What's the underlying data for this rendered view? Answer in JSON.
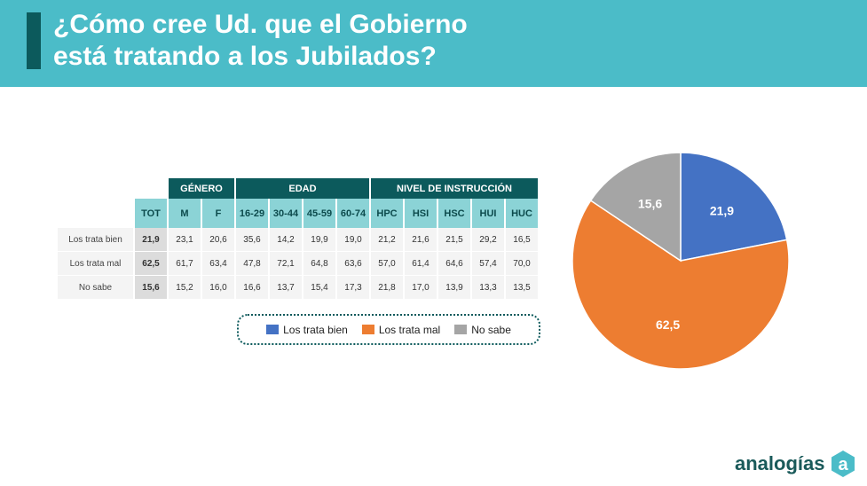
{
  "header": {
    "title_line1": "¿Cómo cree Ud. que el Gobierno",
    "title_line2": "está tratando a los Jubilados?"
  },
  "table": {
    "groups": [
      "GÉNERO",
      "EDAD",
      "NIVEL DE INSTRUCCIÓN"
    ],
    "columns": [
      "TOT",
      "M",
      "F",
      "16-29",
      "30-44",
      "45-59",
      "60-74",
      "HPC",
      "HSI",
      "HSC",
      "HUI",
      "HUC"
    ],
    "rows": [
      {
        "label": "Los trata bien",
        "values": [
          "21,9",
          "23,1",
          "20,6",
          "35,6",
          "14,2",
          "19,9",
          "19,0",
          "21,2",
          "21,6",
          "21,5",
          "29,2",
          "16,5"
        ]
      },
      {
        "label": "Los trata mal",
        "values": [
          "62,5",
          "61,7",
          "63,4",
          "47,8",
          "72,1",
          "64,8",
          "63,6",
          "57,0",
          "61,4",
          "64,6",
          "57,4",
          "70,0"
        ]
      },
      {
        "label": "No sabe",
        "values": [
          "15,6",
          "15,2",
          "16,0",
          "16,6",
          "13,7",
          "15,4",
          "17,3",
          "21,8",
          "17,0",
          "13,9",
          "13,3",
          "13,5"
        ]
      }
    ]
  },
  "chart_data": {
    "type": "pie",
    "categories": [
      "Los trata bien",
      "Los trata mal",
      "No sabe"
    ],
    "values": [
      21.9,
      62.5,
      15.6
    ],
    "labels": [
      "21,9",
      "62,5",
      "15,6"
    ],
    "colors": [
      "#4472c4",
      "#ed7d31",
      "#a5a5a5"
    ],
    "legend": "bottom-left"
  },
  "logo": {
    "text": "analogías"
  }
}
